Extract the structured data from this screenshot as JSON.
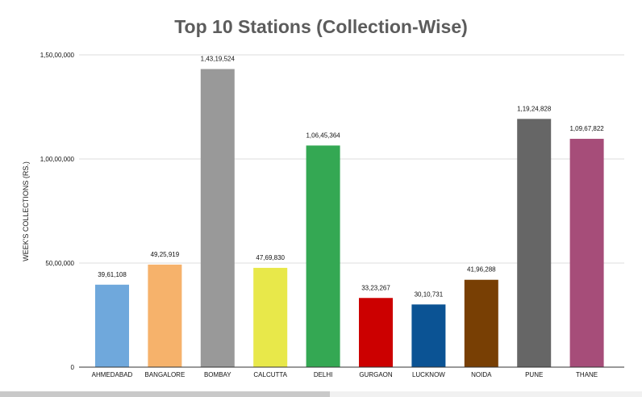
{
  "chart_data": {
    "type": "bar",
    "title": "Top 10 Stations (Collection-Wise)",
    "xlabel": "",
    "ylabel": "WEEK'S COLLECTIONS (RS.)",
    "categories": [
      "AHMEDABAD",
      "BANGALORE",
      "BOMBAY",
      "CALCUTTA",
      "DELHI",
      "GURGAON",
      "LUCKNOW",
      "NOIDA",
      "PUNE",
      "THANE"
    ],
    "values": [
      3961108,
      4925919,
      14319524,
      4769830,
      10645364,
      3323267,
      3010731,
      4196288,
      11924828,
      10967822
    ],
    "data_labels": [
      "39,61,108",
      "49,25,919",
      "1,43,19,524",
      "47,69,830",
      "1,06,45,364",
      "33,23,267",
      "30,10,731",
      "41,96,288",
      "1,19,24,828",
      "1,09,67,822"
    ],
    "colors": [
      "#6fa8dc",
      "#f6b26b",
      "#999999",
      "#e8e84a",
      "#34a853",
      "#cc0000",
      "#0b5394",
      "#783f04",
      "#666666",
      "#a64d79"
    ],
    "ylim": [
      0,
      15000000
    ],
    "yticks": [
      0,
      5000000,
      10000000,
      15000000
    ],
    "ytick_labels": [
      "0",
      "50,00,000",
      "1,00,00,000",
      "1,50,00,000"
    ],
    "grid": true,
    "legend": "none"
  }
}
